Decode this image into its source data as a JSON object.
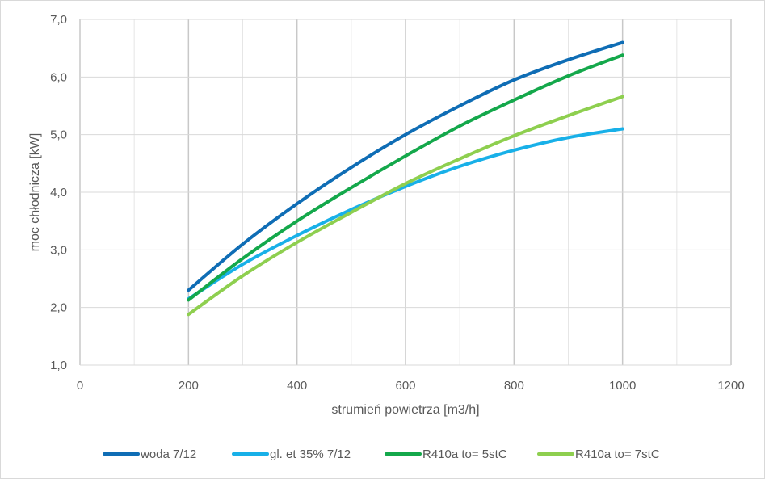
{
  "chart_data": {
    "type": "line",
    "title": "",
    "xlabel": "strumień powietrza [m3/h]",
    "ylabel": "moc chłodnicza [kW]",
    "xlim": [
      0,
      1200
    ],
    "ylim": [
      1.0,
      7.0
    ],
    "x_ticks": [
      0,
      200,
      400,
      600,
      800,
      1000,
      1200
    ],
    "x_tick_labels": [
      "0",
      "200",
      "400",
      "600",
      "800",
      "1000",
      "1200"
    ],
    "y_ticks": [
      1.0,
      2.0,
      3.0,
      4.0,
      5.0,
      6.0,
      7.0
    ],
    "y_tick_labels": [
      "1,0",
      "2,0",
      "3,0",
      "4,0",
      "5,0",
      "6,0",
      "7,0"
    ],
    "x_minor_gridlines": [
      100,
      300,
      500,
      700,
      900,
      1100
    ],
    "grid": true,
    "legend_position": "bottom",
    "x": [
      200,
      300,
      400,
      500,
      600,
      700,
      800,
      900,
      1000
    ],
    "series": [
      {
        "name": "woda 7/12",
        "color": "#0f6db5",
        "values": [
          2.3,
          3.1,
          3.8,
          4.43,
          5.0,
          5.5,
          5.95,
          6.3,
          6.6
        ]
      },
      {
        "name": "gl. et 35% 7/12",
        "color": "#18b0e8",
        "values": [
          2.15,
          2.75,
          3.25,
          3.7,
          4.1,
          4.45,
          4.73,
          4.95,
          5.1
        ]
      },
      {
        "name": "R410a to= 5stC",
        "color": "#14a84b",
        "values": [
          2.13,
          2.85,
          3.5,
          4.08,
          4.63,
          5.15,
          5.6,
          6.02,
          6.38
        ]
      },
      {
        "name": "R410a to= 7stC",
        "color": "#8ecf4f",
        "values": [
          1.88,
          2.55,
          3.13,
          3.65,
          4.15,
          4.58,
          4.98,
          5.33,
          5.66
        ]
      }
    ]
  }
}
